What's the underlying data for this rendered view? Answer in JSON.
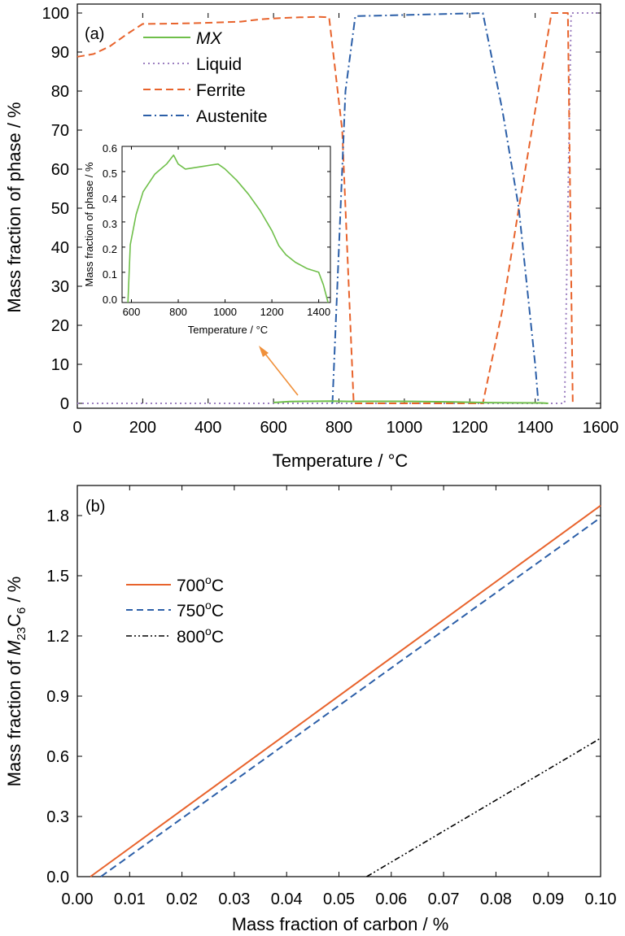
{
  "chart_data": [
    {
      "type": "line",
      "panel_label": "(a)",
      "xlabel": "Temperature / °C",
      "ylabel": "Mass fraction of phase / %",
      "xlim": [
        0,
        1600
      ],
      "ylim": [
        0,
        100
      ],
      "xticks": [
        0,
        200,
        400,
        600,
        800,
        1000,
        1200,
        1400,
        1600
      ],
      "yticks": [
        0,
        10,
        20,
        30,
        40,
        50,
        60,
        70,
        80,
        90,
        100
      ],
      "legend_position": "top-left",
      "grid": false,
      "series": [
        {
          "name": "MX",
          "color": "#6fbf4a",
          "style": "solid",
          "x": [
            600,
            650,
            700,
            780,
            830,
            900,
            975,
            1050,
            1150,
            1250,
            1350,
            1420,
            1440
          ],
          "y": [
            0.2,
            0.45,
            0.52,
            0.58,
            0.51,
            0.52,
            0.53,
            0.48,
            0.36,
            0.19,
            0.12,
            0.1,
            0.0
          ]
        },
        {
          "name": "Liquid",
          "color": "#9c7fc0",
          "style": "dotted",
          "x": [
            0,
            1480,
            1490,
            1510,
            1600
          ],
          "y": [
            0,
            0,
            0,
            100,
            100
          ]
        },
        {
          "name": "Ferrite",
          "color": "#e8632c",
          "style": "dashed",
          "x": [
            0,
            50,
            100,
            150,
            200,
            300,
            400,
            500,
            560,
            620,
            680,
            740,
            770,
            810,
            845,
            850,
            1240,
            1300,
            1350,
            1400,
            1450,
            1480,
            1500,
            1515
          ],
          "y": [
            88.8,
            89.5,
            91.5,
            94.5,
            97.2,
            97.3,
            97.5,
            97.8,
            98.4,
            98.7,
            98.9,
            99.0,
            98.9,
            70,
            0.0,
            0.0,
            0.0,
            24,
            50,
            75,
            100,
            100,
            100,
            0.0
          ]
        },
        {
          "name": "Austenite",
          "color": "#2c5fa8",
          "style": "dashdot",
          "x": [
            780,
            800,
            820,
            850,
            900,
            1000,
            1100,
            1200,
            1240,
            1300,
            1350,
            1400,
            1410
          ],
          "y": [
            0.0,
            40,
            80,
            99.2,
            99.3,
            99.5,
            99.7,
            99.9,
            100,
            75,
            50,
            10,
            0.0
          ]
        }
      ],
      "inset": {
        "xlabel": "Temperature / °C",
        "ylabel": "Mass fraction of phase / %",
        "xlim": [
          560,
          1450
        ],
        "ylim": [
          -0.02,
          0.6
        ],
        "xticks": [
          600,
          800,
          1000,
          1200,
          1400
        ],
        "yticks": [
          0.0,
          0.1,
          0.2,
          0.3,
          0.4,
          0.5,
          0.6
        ],
        "series": [
          {
            "name": "MX",
            "color": "#6fbf4a",
            "x": [
              585,
              595,
              620,
              650,
              700,
              750,
              780,
              800,
              830,
              900,
              970,
              1000,
              1050,
              1100,
              1150,
              1200,
              1230,
              1260,
              1300,
              1350,
              1400,
              1420,
              1440
            ],
            "y": [
              -0.02,
              0.21,
              0.33,
              0.42,
              0.49,
              0.53,
              0.565,
              0.53,
              0.51,
              0.52,
              0.53,
              0.51,
              0.465,
              0.41,
              0.345,
              0.265,
              0.205,
              0.17,
              0.14,
              0.115,
              0.1,
              0.05,
              -0.02
            ]
          }
        ]
      }
    },
    {
      "type": "line",
      "panel_label": "(b)",
      "xlabel": "Mass fraction of carbon / %",
      "ylabel_prefix": "Mass fraction of ",
      "ylabel_species": "M",
      "ylabel_sub1": "23",
      "ylabel_mid": "C",
      "ylabel_sub2": "6",
      "ylabel_suffix": " / %",
      "xlim": [
        0.0,
        0.1
      ],
      "ylim": [
        0.0,
        1.95
      ],
      "xticks": [
        "0.00",
        "0.01",
        "0.02",
        "0.03",
        "0.04",
        "0.05",
        "0.06",
        "0.07",
        "0.08",
        "0.09",
        "0.10"
      ],
      "yticks": [
        "0.0",
        "0.3",
        "0.6",
        "0.9",
        "1.2",
        "1.5",
        "1.8"
      ],
      "legend_position": "upper-left",
      "grid": false,
      "series": [
        {
          "name": "700°C",
          "label_num": "700",
          "color": "#e8632c",
          "style": "solid",
          "x": [
            0.0025,
            0.1
          ],
          "y": [
            0.0,
            1.85
          ]
        },
        {
          "name": "750°C",
          "label_num": "750",
          "color": "#2c5fa8",
          "style": "dashed",
          "x": [
            0.0045,
            0.1
          ],
          "y": [
            0.0,
            1.79
          ]
        },
        {
          "name": "800°C",
          "label_num": "800",
          "color": "#000000",
          "style": "dashdotdot",
          "x": [
            0.0553,
            0.1
          ],
          "y": [
            0.0,
            0.69
          ]
        }
      ]
    }
  ]
}
